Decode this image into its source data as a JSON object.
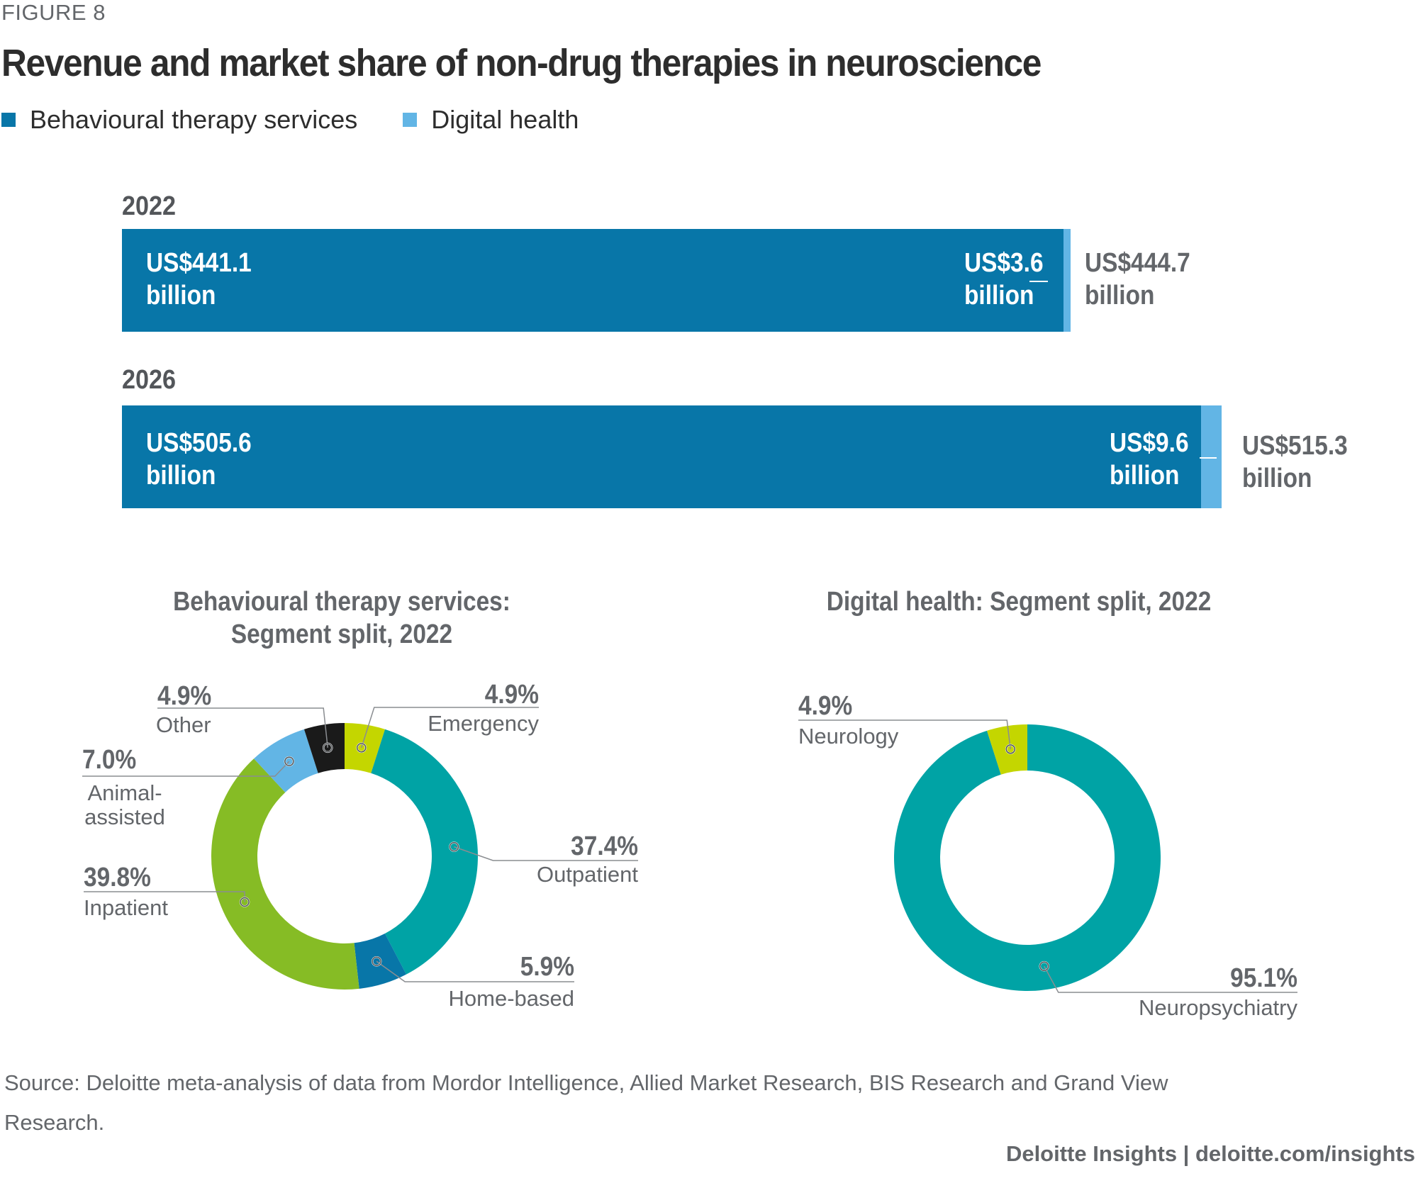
{
  "figure_label": "FIGURE 8",
  "title": "Revenue and market share of non-drug therapies in neuroscience",
  "legend": [
    {
      "label": "Behavioural therapy services",
      "color": "#0876a8"
    },
    {
      "label": "Digital health",
      "color": "#62b5e5"
    }
  ],
  "chart_data": [
    {
      "type": "bar",
      "orientation": "horizontal",
      "stacked": true,
      "title": "Revenue and market share of non-drug therapies in neuroscience",
      "categories": [
        "2022",
        "2026"
      ],
      "units": "US$ billion",
      "series": [
        {
          "name": "Behavioural therapy services",
          "values": [
            441.1,
            505.6
          ],
          "color": "#0876a8"
        },
        {
          "name": "Digital health",
          "values": [
            3.6,
            9.6
          ],
          "color": "#62b5e5"
        }
      ],
      "totals": [
        444.7,
        515.3
      ],
      "labels": {
        "2022": {
          "behavioural_line1": "US$441.1",
          "behavioural_line2": "billion",
          "digital_line1": "US$3.6",
          "digital_line2": "billion",
          "total_line1": "US$444.7",
          "total_line2": "billion"
        },
        "2026": {
          "behavioural_line1": "US$505.6",
          "behavioural_line2": "billion",
          "digital_line1": "US$9.6",
          "digital_line2": "billion",
          "total_line1": "US$515.3",
          "total_line2": "billion"
        }
      }
    },
    {
      "type": "pie",
      "donut": true,
      "title_line1": "Behavioural therapy services:",
      "title_line2": "Segment split, 2022",
      "slices": [
        {
          "label": "Emergency",
          "value": 4.9,
          "pct": "4.9%",
          "color": "#c4d600"
        },
        {
          "label": "Outpatient",
          "value": 37.4,
          "pct": "37.4%",
          "color": "#00a3a5"
        },
        {
          "label": "Home-based",
          "value": 5.9,
          "pct": "5.9%",
          "color": "#0876a8"
        },
        {
          "label": "Inpatient",
          "value": 39.8,
          "pct": "39.8%",
          "color": "#86bc25"
        },
        {
          "label": "Animal-assisted",
          "label_line1": "Animal-",
          "label_line2": "assisted",
          "value": 7.0,
          "pct": "7.0%",
          "color": "#62b5e5"
        },
        {
          "label": "Other",
          "value": 4.9,
          "pct": "4.9%",
          "color": "#1a1a1a"
        }
      ]
    },
    {
      "type": "pie",
      "donut": true,
      "title": "Digital health: Segment split, 2022",
      "slices": [
        {
          "label": "Neuropsychiatry",
          "value": 95.1,
          "pct": "95.1%",
          "color": "#00a3a5"
        },
        {
          "label": "Neurology",
          "value": 4.9,
          "pct": "4.9%",
          "color": "#c4d600"
        }
      ]
    }
  ],
  "source": "Source: Deloitte meta-analysis of data from Mordor Intelligence, Allied Market Research, BIS Research and Grand View Research.",
  "footer": "Deloitte Insights | deloitte.com/insights"
}
